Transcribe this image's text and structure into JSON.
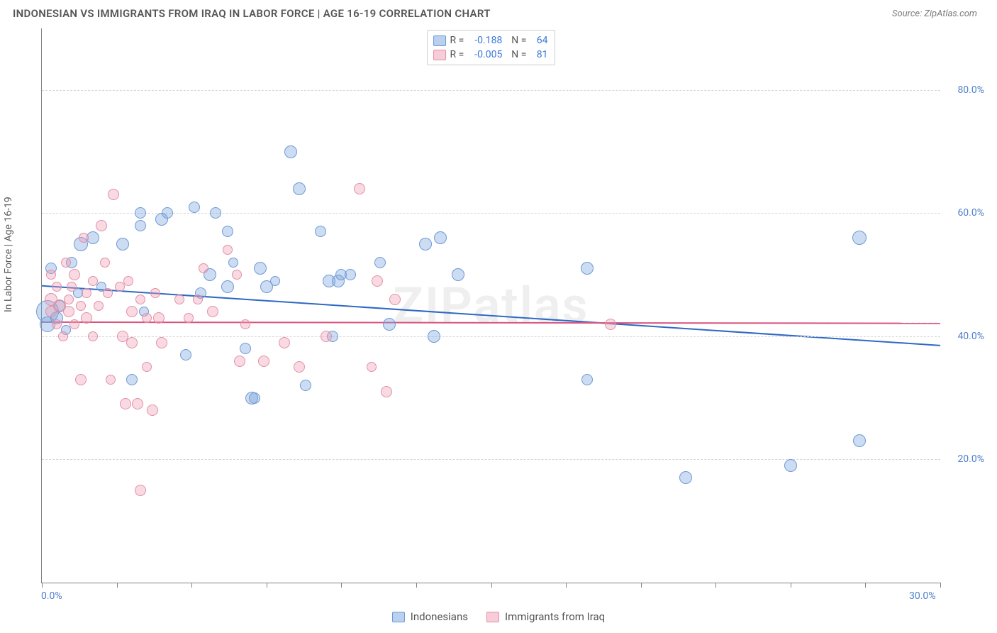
{
  "header": {
    "title": "INDONESIAN VS IMMIGRANTS FROM IRAQ IN LABOR FORCE | AGE 16-19 CORRELATION CHART",
    "source": "Source: ZipAtlas.com"
  },
  "watermark": "ZIPatlas",
  "chart": {
    "type": "scatter",
    "ylabel": "In Labor Force | Age 16-19",
    "xlim": [
      0,
      30
    ],
    "ylim": [
      0,
      90
    ],
    "xtick_positions": [
      0,
      2.5,
      5,
      7.5,
      10,
      12.5,
      15,
      17.5,
      20,
      22.5,
      25,
      27.5,
      30
    ],
    "ygrid": [
      {
        "value": 20,
        "label": "20.0%"
      },
      {
        "value": 40,
        "label": "40.0%"
      },
      {
        "value": 60,
        "label": "60.0%"
      },
      {
        "value": 80,
        "label": "80.0%"
      }
    ],
    "xaxis_labels": {
      "left": "0.0%",
      "right": "30.0%"
    },
    "background_color": "#ffffff",
    "grid_color": "#d6d6d6",
    "axis_color": "#828282",
    "tick_label_color": "#4f7fc9",
    "series": [
      {
        "key": "indonesians",
        "label": "Indonesians",
        "fill": "rgba(122,164,222,0.38)",
        "stroke": "#6e99d6",
        "swatch_fill": "#b9d0ee",
        "swatch_stroke": "#6e99d6",
        "R": "-0.188",
        "N": "64",
        "trend": {
          "y_at_x0": 48.2,
          "y_at_x30": 38.5,
          "color": "#2f68c5",
          "width": 2,
          "dash": ""
        },
        "points": [
          {
            "x": 0.2,
            "y": 42,
            "r": 11
          },
          {
            "x": 0.2,
            "y": 44,
            "r": 16
          },
          {
            "x": 0.3,
            "y": 51,
            "r": 8
          },
          {
            "x": 0.6,
            "y": 45,
            "r": 8
          },
          {
            "x": 0.5,
            "y": 43,
            "r": 9
          },
          {
            "x": 0.8,
            "y": 41,
            "r": 7
          },
          {
            "x": 1.0,
            "y": 52,
            "r": 8
          },
          {
            "x": 1.2,
            "y": 47,
            "r": 7
          },
          {
            "x": 1.3,
            "y": 55,
            "r": 10
          },
          {
            "x": 1.7,
            "y": 56,
            "r": 9
          },
          {
            "x": 2.0,
            "y": 48,
            "r": 7
          },
          {
            "x": 2.7,
            "y": 55,
            "r": 9
          },
          {
            "x": 3.0,
            "y": 33,
            "r": 8
          },
          {
            "x": 3.3,
            "y": 60,
            "r": 8
          },
          {
            "x": 3.3,
            "y": 58,
            "r": 8
          },
          {
            "x": 3.4,
            "y": 44,
            "r": 7
          },
          {
            "x": 4.0,
            "y": 59,
            "r": 9
          },
          {
            "x": 4.2,
            "y": 60,
            "r": 8
          },
          {
            "x": 4.8,
            "y": 37,
            "r": 8
          },
          {
            "x": 5.1,
            "y": 61,
            "r": 8
          },
          {
            "x": 5.3,
            "y": 47,
            "r": 8
          },
          {
            "x": 5.6,
            "y": 50,
            "r": 9
          },
          {
            "x": 5.8,
            "y": 60,
            "r": 8
          },
          {
            "x": 6.2,
            "y": 48,
            "r": 9
          },
          {
            "x": 6.2,
            "y": 57,
            "r": 8
          },
          {
            "x": 6.4,
            "y": 52,
            "r": 7
          },
          {
            "x": 6.8,
            "y": 38,
            "r": 8
          },
          {
            "x": 7.0,
            "y": 30,
            "r": 9
          },
          {
            "x": 7.1,
            "y": 30,
            "r": 8
          },
          {
            "x": 7.5,
            "y": 48,
            "r": 9
          },
          {
            "x": 7.3,
            "y": 51,
            "r": 9
          },
          {
            "x": 7.8,
            "y": 49,
            "r": 7
          },
          {
            "x": 8.3,
            "y": 70,
            "r": 9
          },
          {
            "x": 8.6,
            "y": 64,
            "r": 9
          },
          {
            "x": 8.8,
            "y": 32,
            "r": 8
          },
          {
            "x": 9.3,
            "y": 57,
            "r": 8
          },
          {
            "x": 9.6,
            "y": 49,
            "r": 9
          },
          {
            "x": 9.9,
            "y": 49,
            "r": 9
          },
          {
            "x": 9.7,
            "y": 40,
            "r": 8
          },
          {
            "x": 10.0,
            "y": 50,
            "r": 8
          },
          {
            "x": 10.3,
            "y": 50,
            "r": 8
          },
          {
            "x": 11.3,
            "y": 52,
            "r": 8
          },
          {
            "x": 11.6,
            "y": 42,
            "r": 9
          },
          {
            "x": 12.8,
            "y": 55,
            "r": 9
          },
          {
            "x": 13.1,
            "y": 40,
            "r": 9
          },
          {
            "x": 13.3,
            "y": 56,
            "r": 9
          },
          {
            "x": 13.9,
            "y": 50,
            "r": 9
          },
          {
            "x": 18.2,
            "y": 51,
            "r": 9
          },
          {
            "x": 18.2,
            "y": 33,
            "r": 8
          },
          {
            "x": 21.5,
            "y": 17,
            "r": 9
          },
          {
            "x": 25.0,
            "y": 19,
            "r": 9
          },
          {
            "x": 27.3,
            "y": 56,
            "r": 10
          },
          {
            "x": 27.3,
            "y": 23,
            "r": 9
          }
        ]
      },
      {
        "key": "iraq",
        "label": "Immigrants from Iraq",
        "fill": "rgba(238,158,180,0.38)",
        "stroke": "#e38fa7",
        "swatch_fill": "#f6cdd8",
        "swatch_stroke": "#e38fa7",
        "R": "-0.005",
        "N": "81",
        "trend": {
          "y_at_x0": 42.3,
          "y_at_x30": 42.1,
          "color": "#d8557e",
          "width": 2,
          "dash": ""
        },
        "trend_dash_ext": {
          "from_x": 24.5,
          "color": "#d8557e"
        },
        "points": [
          {
            "x": 0.3,
            "y": 50,
            "r": 7
          },
          {
            "x": 0.3,
            "y": 44,
            "r": 8
          },
          {
            "x": 0.3,
            "y": 46,
            "r": 9
          },
          {
            "x": 0.5,
            "y": 42,
            "r": 7
          },
          {
            "x": 0.5,
            "y": 48,
            "r": 7
          },
          {
            "x": 0.6,
            "y": 45,
            "r": 9
          },
          {
            "x": 0.7,
            "y": 40,
            "r": 7
          },
          {
            "x": 0.8,
            "y": 52,
            "r": 7
          },
          {
            "x": 0.9,
            "y": 44,
            "r": 8
          },
          {
            "x": 0.9,
            "y": 46,
            "r": 7
          },
          {
            "x": 1.0,
            "y": 48,
            "r": 7
          },
          {
            "x": 1.1,
            "y": 42,
            "r": 7
          },
          {
            "x": 1.1,
            "y": 50,
            "r": 8
          },
          {
            "x": 1.3,
            "y": 33,
            "r": 8
          },
          {
            "x": 1.3,
            "y": 45,
            "r": 7
          },
          {
            "x": 1.4,
            "y": 56,
            "r": 7
          },
          {
            "x": 1.5,
            "y": 43,
            "r": 8
          },
          {
            "x": 1.5,
            "y": 47,
            "r": 7
          },
          {
            "x": 1.7,
            "y": 40,
            "r": 7
          },
          {
            "x": 1.7,
            "y": 49,
            "r": 7
          },
          {
            "x": 1.9,
            "y": 45,
            "r": 7
          },
          {
            "x": 2.0,
            "y": 58,
            "r": 8
          },
          {
            "x": 2.1,
            "y": 52,
            "r": 7
          },
          {
            "x": 2.2,
            "y": 47,
            "r": 7
          },
          {
            "x": 2.3,
            "y": 33,
            "r": 7
          },
          {
            "x": 2.4,
            "y": 63,
            "r": 8
          },
          {
            "x": 2.6,
            "y": 48,
            "r": 7
          },
          {
            "x": 2.7,
            "y": 40,
            "r": 8
          },
          {
            "x": 2.8,
            "y": 29,
            "r": 8
          },
          {
            "x": 2.9,
            "y": 49,
            "r": 7
          },
          {
            "x": 3.0,
            "y": 44,
            "r": 8
          },
          {
            "x": 3.0,
            "y": 39,
            "r": 8
          },
          {
            "x": 3.2,
            "y": 29,
            "r": 8
          },
          {
            "x": 3.3,
            "y": 15,
            "r": 8
          },
          {
            "x": 3.3,
            "y": 46,
            "r": 7
          },
          {
            "x": 3.5,
            "y": 35,
            "r": 7
          },
          {
            "x": 3.5,
            "y": 43,
            "r": 7
          },
          {
            "x": 3.7,
            "y": 28,
            "r": 8
          },
          {
            "x": 3.8,
            "y": 47,
            "r": 7
          },
          {
            "x": 3.9,
            "y": 43,
            "r": 8
          },
          {
            "x": 4.0,
            "y": 39,
            "r": 8
          },
          {
            "x": 4.6,
            "y": 46,
            "r": 7
          },
          {
            "x": 4.9,
            "y": 43,
            "r": 7
          },
          {
            "x": 5.2,
            "y": 46,
            "r": 7
          },
          {
            "x": 5.4,
            "y": 51,
            "r": 7
          },
          {
            "x": 5.7,
            "y": 44,
            "r": 8
          },
          {
            "x": 6.2,
            "y": 54,
            "r": 7
          },
          {
            "x": 6.5,
            "y": 50,
            "r": 7
          },
          {
            "x": 6.6,
            "y": 36,
            "r": 8
          },
          {
            "x": 6.8,
            "y": 42,
            "r": 7
          },
          {
            "x": 7.4,
            "y": 36,
            "r": 8
          },
          {
            "x": 8.1,
            "y": 39,
            "r": 8
          },
          {
            "x": 8.6,
            "y": 35,
            "r": 8
          },
          {
            "x": 9.5,
            "y": 40,
            "r": 8
          },
          {
            "x": 10.6,
            "y": 64,
            "r": 8
          },
          {
            "x": 11.2,
            "y": 49,
            "r": 8
          },
          {
            "x": 11.5,
            "y": 31,
            "r": 8
          },
          {
            "x": 11.0,
            "y": 35,
            "r": 7
          },
          {
            "x": 11.8,
            "y": 46,
            "r": 8
          },
          {
            "x": 19.0,
            "y": 42,
            "r": 8
          }
        ]
      }
    ]
  },
  "legend_bottom": [
    {
      "series": "indonesians"
    },
    {
      "series": "iraq"
    }
  ]
}
